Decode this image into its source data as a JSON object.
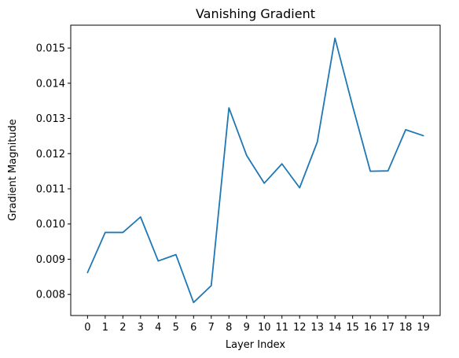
{
  "chart_data": {
    "type": "line",
    "title": "Vanishing Gradient",
    "xlabel": "Layer Index",
    "ylabel": "Gradient Magnitude",
    "x": [
      0,
      1,
      2,
      3,
      4,
      5,
      6,
      7,
      8,
      9,
      10,
      11,
      12,
      13,
      14,
      15,
      16,
      17,
      18,
      19
    ],
    "series": [
      {
        "values": [
          0.00862,
          0.00976,
          0.00976,
          0.0102,
          0.00895,
          0.00913,
          0.00777,
          0.00825,
          0.0133,
          0.01195,
          0.01116,
          0.01171,
          0.01103,
          0.01233,
          0.01528,
          0.01335,
          0.0115,
          0.01151,
          0.01268,
          0.01251
        ],
        "color": "#1f77b4"
      }
    ],
    "xlim": [
      -0.95,
      19.95
    ],
    "ylim": [
      0.0074,
      0.01565
    ],
    "xticks": [
      "0",
      "1",
      "2",
      "3",
      "4",
      "5",
      "6",
      "7",
      "8",
      "9",
      "10",
      "11",
      "12",
      "13",
      "14",
      "15",
      "16",
      "17",
      "18",
      "19"
    ],
    "yticks": [
      0.008,
      0.009,
      0.01,
      0.011,
      0.012,
      0.013,
      0.014,
      0.015
    ],
    "ytick_labels": [
      "0.008",
      "0.009",
      "0.010",
      "0.011",
      "0.012",
      "0.013",
      "0.014",
      "0.015"
    ],
    "grid": false,
    "legend": false
  }
}
